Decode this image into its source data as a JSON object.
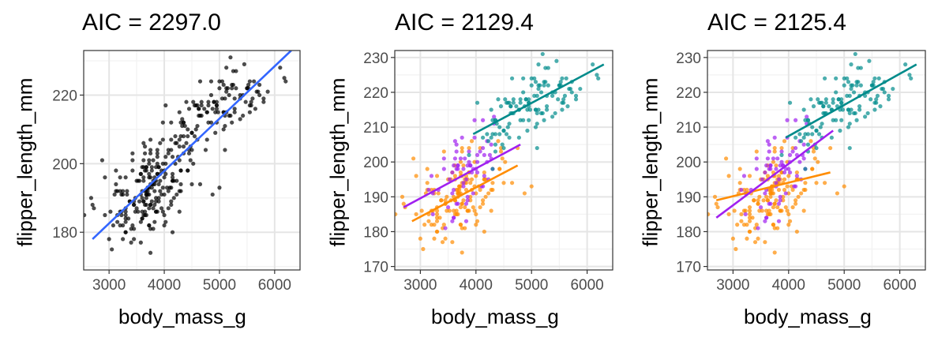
{
  "chart_data": [
    {
      "type": "scatter",
      "title": "AIC = 2297.0",
      "xlabel": "body_mass_g",
      "ylabel": "flipper_length_mm",
      "xlim": [
        2540,
        6460
      ],
      "ylim": [
        169,
        233
      ],
      "xticks": [
        3000,
        4000,
        5000,
        6000
      ],
      "yticks": [
        180,
        200,
        220
      ],
      "grid": true,
      "legend": "none",
      "point_color": "#000000",
      "lines": [
        {
          "x": [
            2700,
            6300
          ],
          "y": [
            178,
            233
          ],
          "color": "#3366FF"
        }
      ]
    },
    {
      "type": "scatter",
      "title": "AIC = 2129.4",
      "xlabel": "body_mass_g",
      "ylabel": "flipper_length_mm",
      "xlim": [
        2540,
        6460
      ],
      "ylim": [
        169,
        232
      ],
      "xticks": [
        3000,
        4000,
        5000,
        6000
      ],
      "yticks": [
        170,
        180,
        190,
        200,
        210,
        220,
        230
      ],
      "grid": true,
      "legend": "none",
      "groups": [
        {
          "color": "#FF8C00"
        },
        {
          "color": "#A020F0"
        },
        {
          "color": "#008B8B"
        }
      ],
      "lines": [
        {
          "x": [
            2850,
            4750
          ],
          "y": [
            183,
            199
          ],
          "color": "#FF8C00"
        },
        {
          "x": [
            2700,
            4800
          ],
          "y": [
            187,
            205
          ],
          "color": "#A020F0"
        },
        {
          "x": [
            3950,
            6300
          ],
          "y": [
            208,
            228
          ],
          "color": "#008B8B"
        }
      ]
    },
    {
      "type": "scatter",
      "title": "AIC = 2125.4",
      "xlabel": "body_mass_g",
      "ylabel": "flipper_length_mm",
      "xlim": [
        2540,
        6460
      ],
      "ylim": [
        169,
        232
      ],
      "xticks": [
        3000,
        4000,
        5000,
        6000
      ],
      "yticks": [
        170,
        180,
        190,
        200,
        210,
        220,
        230
      ],
      "grid": true,
      "legend": "none",
      "groups": [
        {
          "color": "#FF8C00"
        },
        {
          "color": "#A020F0"
        },
        {
          "color": "#008B8B"
        }
      ],
      "lines": [
        {
          "x": [
            2700,
            4750
          ],
          "y": [
            189,
            197
          ],
          "color": "#FF8C00"
        },
        {
          "x": [
            2700,
            4800
          ],
          "y": [
            184,
            209
          ],
          "color": "#A020F0"
        },
        {
          "x": [
            3950,
            6300
          ],
          "y": [
            207,
            228
          ],
          "color": "#008B8B"
        }
      ]
    }
  ]
}
